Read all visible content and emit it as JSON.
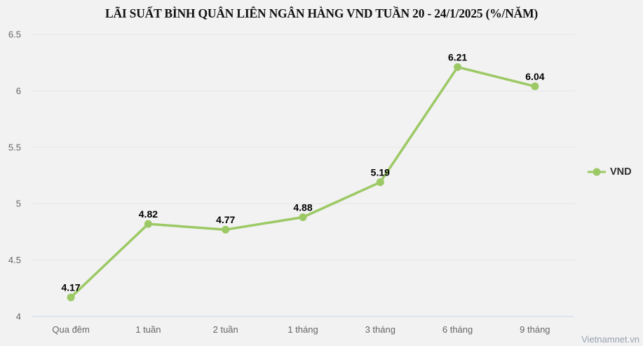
{
  "chart_data": {
    "type": "line",
    "title": "LÃI SUẤT BÌNH QUÂN LIÊN NGÂN HÀNG VND TUẦN 20 - 24/1/2025 (%/NĂM)",
    "categories": [
      "Qua đêm",
      "1 tuần",
      "2 tuần",
      "1 tháng",
      "3 tháng",
      "6 tháng",
      "9 tháng"
    ],
    "series": [
      {
        "name": "VND",
        "values": [
          4.17,
          4.82,
          4.77,
          4.88,
          5.19,
          6.21,
          6.04
        ]
      }
    ],
    "xlabel": "",
    "ylabel": "",
    "ylim": [
      4,
      6.5
    ],
    "yticks": [
      4,
      4.5,
      5,
      5.5,
      6,
      6.5
    ],
    "grid": true,
    "legend_position": "right",
    "data_labels_format": "0.00"
  },
  "watermark": "Vietnamnet.vn",
  "colors": {
    "background": "#f2f2f2",
    "gridline": "#e6e6e6",
    "axis_line": "#ccd6eb",
    "tick_label": "#666666",
    "data_label": "#000000",
    "series": "#9cc965",
    "legend_text": "#2f2f2f",
    "watermark": "#98a0b3"
  }
}
